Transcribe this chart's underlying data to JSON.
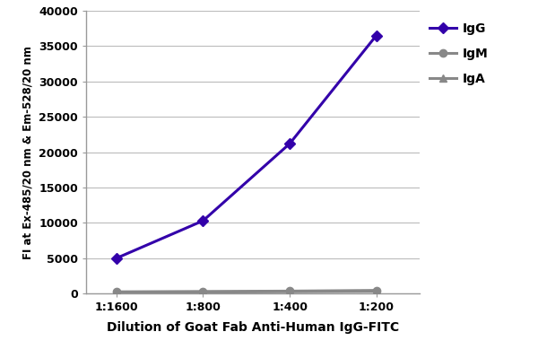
{
  "x_labels": [
    "1:1600",
    "1:800",
    "1:400",
    "1:200"
  ],
  "x_values": [
    1,
    2,
    3,
    4
  ],
  "IgG_values": [
    5000,
    10300,
    21200,
    36500
  ],
  "IgM_values": [
    250,
    300,
    350,
    450
  ],
  "IgA_values": [
    150,
    200,
    250,
    300
  ],
  "IgG_color": "#3300AA",
  "IgM_color": "#888888",
  "IgA_color": "#888888",
  "IgG_marker": "D",
  "IgM_marker": "o",
  "IgA_marker": "^",
  "ylabel": "FI at Ex-485/20 nm & Em-528/20 nm",
  "xlabel": "Dilution of Goat Fab Anti-Human IgG-FITC",
  "ylim": [
    0,
    40000
  ],
  "yticks": [
    0,
    5000,
    10000,
    15000,
    20000,
    25000,
    30000,
    35000,
    40000
  ],
  "bg_color": "#ffffff",
  "fig_color": "#ffffff",
  "line_width": 2.2,
  "marker_size": 6,
  "grid_color": "#bbbbbb",
  "spine_color": "#999999",
  "xlabel_fontsize": 10,
  "ylabel_fontsize": 8.5,
  "tick_fontsize": 9,
  "legend_fontsize": 10,
  "legend_labels": [
    "IgG",
    "IgM",
    "IgA"
  ]
}
